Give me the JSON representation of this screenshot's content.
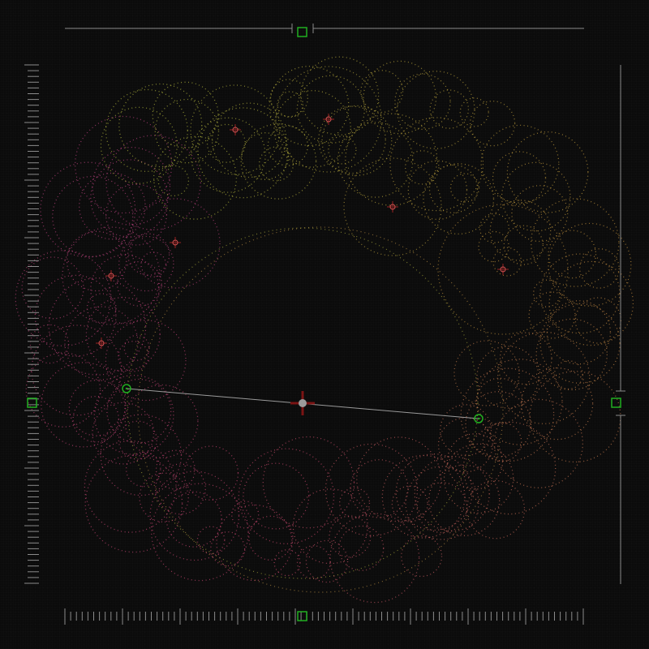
{
  "canvas": {
    "background": "#0b0b0b",
    "ruler_color": "#8a8a8a",
    "handle_color": "#1fae1f",
    "center_marker_color": "#7a1212",
    "center_dot_color": "#9a9a9a",
    "point_marker_color": "#c03a3a",
    "color_stops": [
      "#a8b03a",
      "#b88a3a",
      "#c0446a",
      "#b03f7a"
    ]
  },
  "icons": {
    "top_handle": "square-handle-icon",
    "bottom_handle": "square-handle-icon",
    "left_handle": "square-handle-icon",
    "right_handle": "square-handle-icon",
    "center": "crosshair-icon",
    "endpoint": "ring-handle-icon"
  }
}
